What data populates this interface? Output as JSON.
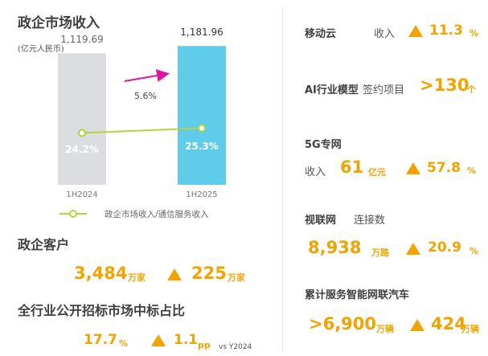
{
  "chart": {
    "title": "政企市场收入",
    "unit_note": "(亿元人民币)",
    "growth_label": "5.6%",
    "legend": "政企市场收入/通信服务收入"
  },
  "chart_data": {
    "type": "bar",
    "title": "政企市场收入",
    "ylabel": "(亿元人民币)",
    "categories": [
      "1H2024",
      "1H2025"
    ],
    "series": [
      {
        "values": [
          1119.69,
          1181.96
        ]
      },
      {
        "name": "政企市场收入/通信服务收入",
        "type": "line",
        "values": [
          24.2,
          25.3
        ]
      }
    ],
    "bar_labels": [
      "1,119.69",
      "1,181.96"
    ],
    "ratio_labels": [
      "24.2%",
      "25.3%"
    ],
    "annotations": [
      "5.6%"
    ],
    "ylim": [
      0,
      1300
    ],
    "colors": {
      "bar_2024": "#dcdde0",
      "bar_2025": "#5fcde9",
      "line": "#b5d33f",
      "arrow": "#e0159e"
    }
  },
  "customers": {
    "title": "政企客户",
    "value": "3,484",
    "unit": "万家",
    "delta": "225",
    "delta_unit": "万家"
  },
  "bidding": {
    "title": "全行业公开招标市场中标占比",
    "value": "17.7",
    "unit": "%",
    "delta": "1.1",
    "delta_unit": "pp",
    "note": "vs Y2024"
  },
  "right": {
    "mobile_cloud": {
      "title": "移动云",
      "label": "收入",
      "growth": "11.3",
      "unit": "%"
    },
    "ai_model": {
      "title": "AI行业模型",
      "label": "签约项目",
      "value": ">130",
      "unit": "个"
    },
    "fiveg": {
      "title": "5G专网",
      "label": "收入",
      "value": "61",
      "unit": "亿元",
      "growth": "57.8",
      "growth_unit": "%"
    },
    "video": {
      "title": "视联网",
      "label": "连接数",
      "value": "8,938",
      "unit": "万路",
      "growth": "20.9",
      "growth_unit": "%"
    },
    "vehicles": {
      "title": "累计服务智能网联汽车",
      "value": ">6,900",
      "unit": "万辆",
      "delta": "424",
      "delta_unit": "万辆"
    }
  },
  "colors": {
    "accent": "#f2a300",
    "title": "#404040"
  }
}
